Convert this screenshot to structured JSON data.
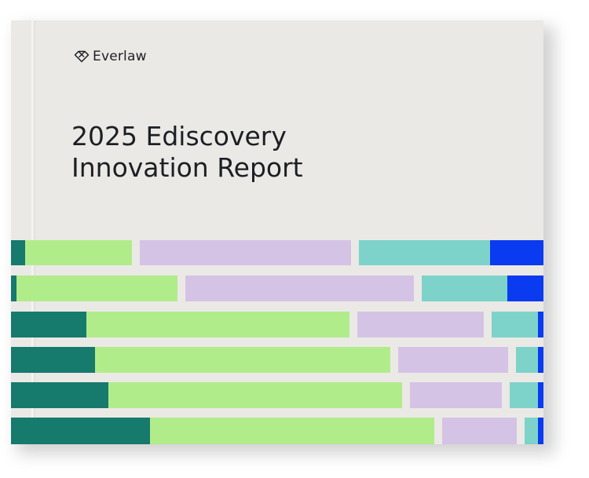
{
  "brand": {
    "name": "Everlaw",
    "icon": "diamond-logo-icon"
  },
  "report": {
    "title_line1": "2025 Ediscovery",
    "title_line2": "Innovation Report"
  },
  "colors": {
    "cover": "#ebe9e5",
    "text": "#1c1f24",
    "teal_dark": "#167a6d",
    "green_light": "#b1ec8a",
    "lavender": "#d5c3e6",
    "aqua": "#7dd3c9",
    "blue": "#0b3bf0"
  }
}
